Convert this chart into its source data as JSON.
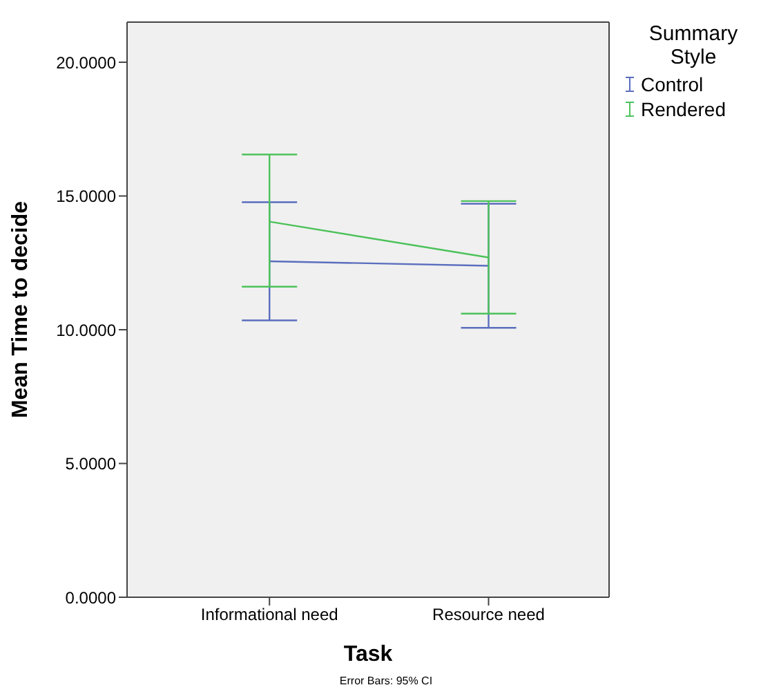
{
  "chart_data": {
    "type": "line",
    "xlabel": "Task",
    "ylabel": "Mean Time to decide",
    "legend_title": "Summary Style",
    "legend": "top right",
    "categories": [
      "Informational need",
      "Resource need"
    ],
    "series": [
      {
        "name": "Control",
        "color": "#5a6ebe",
        "values": [
          12.56,
          12.39
        ],
        "errors": [
          [
            10.35,
            14.77
          ],
          [
            10.07,
            14.71
          ]
        ]
      },
      {
        "name": "Rendered",
        "color": "#4cc25a",
        "values": [
          14.04,
          12.7
        ],
        "errors": [
          [
            11.61,
            16.55
          ],
          [
            10.6,
            14.81
          ]
        ]
      }
    ],
    "ylim": [
      0,
      21.5
    ],
    "yticks": [
      {
        "value": 0,
        "label": "0.0000"
      },
      {
        "value": 5,
        "label": "5.0000"
      },
      {
        "value": 10,
        "label": "10.0000"
      },
      {
        "value": 15,
        "label": "15.0000"
      },
      {
        "value": 20,
        "label": "20.0000"
      }
    ],
    "grid": false,
    "marker": "none",
    "line_style": "solid",
    "annotations": [
      "Error Bars: 95% CI"
    ]
  }
}
